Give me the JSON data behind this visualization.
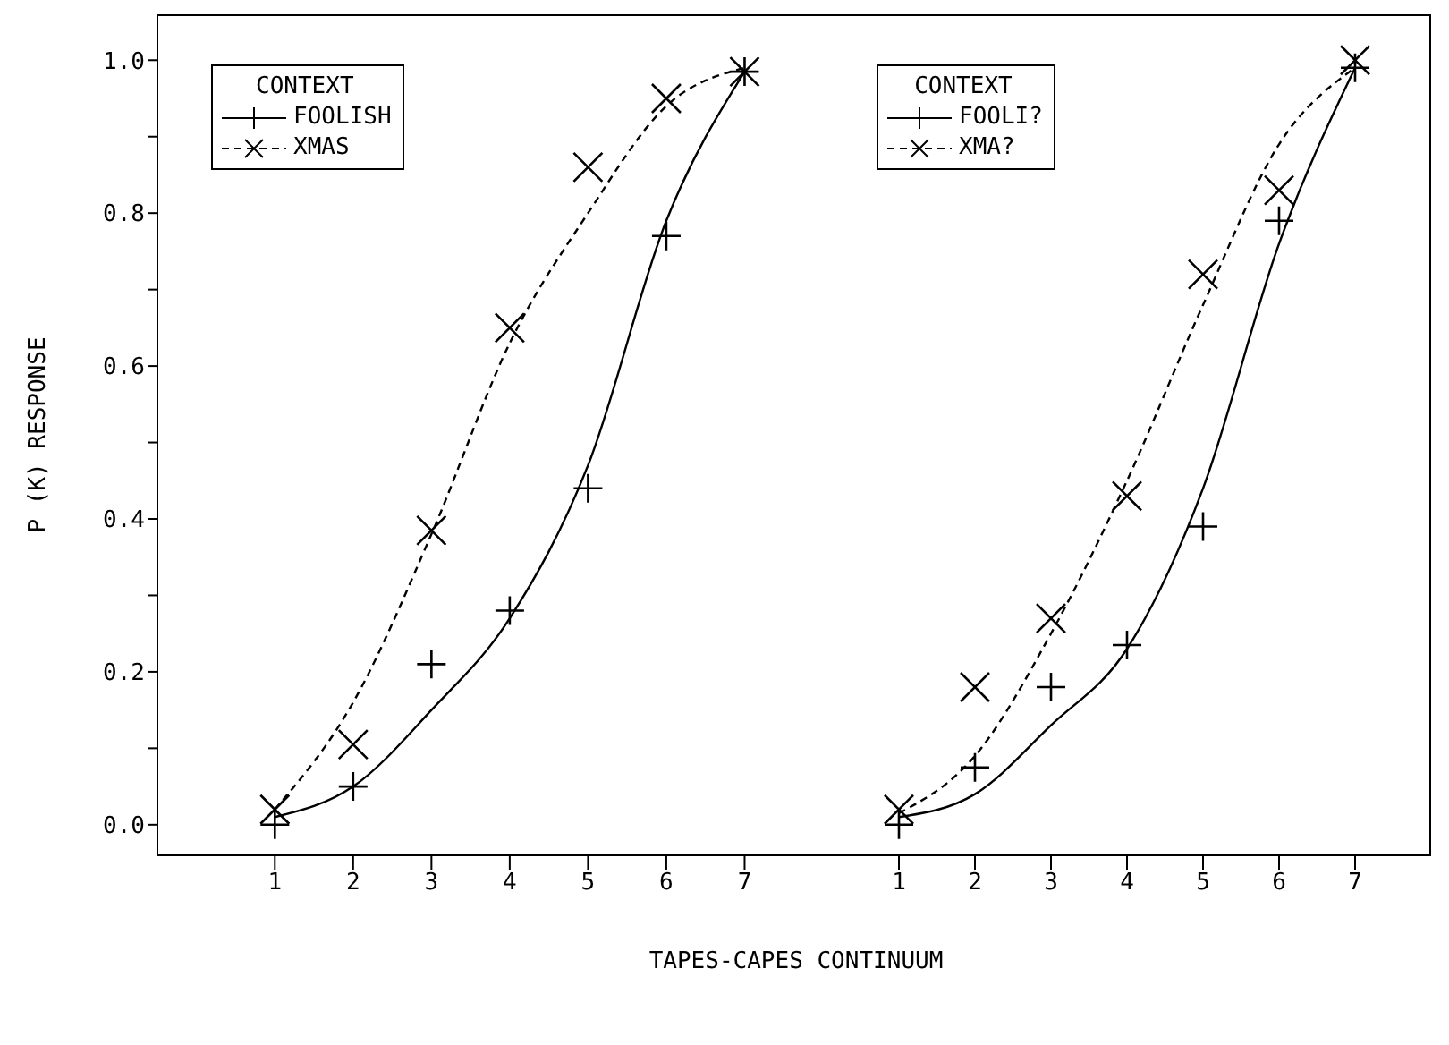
{
  "chart_data": [
    {
      "type": "scatter",
      "ylabel": "P (K)  RESPONSE",
      "xlabel": "TAPES-CAPES CONTINUUM",
      "legend_title": "CONTEXT",
      "legend": "top left",
      "x": [
        1,
        2,
        3,
        4,
        5,
        6,
        7
      ],
      "xlim": [
        -0.5,
        8
      ],
      "xticks": [
        1,
        2,
        3,
        4,
        5,
        6,
        7
      ],
      "ylim": [
        -0.04,
        1.06
      ],
      "yticks": [
        {
          "value": 0,
          "label": "0.0"
        },
        {
          "value": 0.1,
          "label": null
        },
        {
          "value": 0.2,
          "label": "0.2"
        },
        {
          "value": 0.3,
          "label": null
        },
        {
          "value": 0.4,
          "label": "0.4"
        },
        {
          "value": 0.5,
          "label": null
        },
        {
          "value": 0.6,
          "label": "0.6"
        },
        {
          "value": 0.7,
          "label": null
        },
        {
          "value": 0.8,
          "label": "0.8"
        },
        {
          "value": 0.9,
          "label": null
        },
        {
          "value": 1,
          "label": "1.0"
        }
      ],
      "series": [
        {
          "marker": "plus",
          "color": "#000000",
          "values": [
            0.0,
            0.05,
            0.21,
            0.28,
            0.44,
            0.77,
            0.985
          ]
        },
        {
          "marker": "cross",
          "color": "#000000",
          "values": [
            0.02,
            0.105,
            0.385,
            0.65,
            0.86,
            0.95,
            0.985
          ]
        },
        {
          "name": "FOOLISH",
          "type": "line",
          "line_style": "solid",
          "color": "#000000",
          "values": [
            0.01,
            0.05,
            0.15,
            0.27,
            0.47,
            0.79,
            0.985
          ]
        },
        {
          "name": "XMAS",
          "type": "line",
          "line_style": "dashed",
          "color": "#000000",
          "values": [
            0.02,
            0.16,
            0.38,
            0.63,
            0.8,
            0.94,
            0.99
          ]
        }
      ]
    },
    {
      "type": "scatter",
      "legend_title": "CONTEXT",
      "legend": "top left",
      "tick_labels": "x",
      "x": [
        1,
        2,
        3,
        4,
        5,
        6,
        7
      ],
      "xlim": [
        0,
        8
      ],
      "xticks": [
        1,
        2,
        3,
        4,
        5,
        6,
        7
      ],
      "ylim": [
        -0.04,
        1.06
      ],
      "series": [
        {
          "marker": "plus",
          "color": "#000000",
          "values": [
            0.0,
            0.075,
            0.18,
            0.235,
            0.39,
            0.79,
            0.99
          ]
        },
        {
          "marker": "cross",
          "color": "#000000",
          "values": [
            0.02,
            0.18,
            0.27,
            0.43,
            0.72,
            0.83,
            1.0
          ]
        },
        {
          "name": "FOOLI?",
          "type": "line",
          "line_style": "solid",
          "color": "#000000",
          "values": [
            0.01,
            0.04,
            0.13,
            0.23,
            0.44,
            0.76,
            0.99
          ]
        },
        {
          "name": "XMA?",
          "type": "line",
          "line_style": "dashed",
          "color": "#000000",
          "values": [
            0.015,
            0.09,
            0.25,
            0.45,
            0.68,
            0.89,
            0.99
          ]
        }
      ]
    }
  ]
}
